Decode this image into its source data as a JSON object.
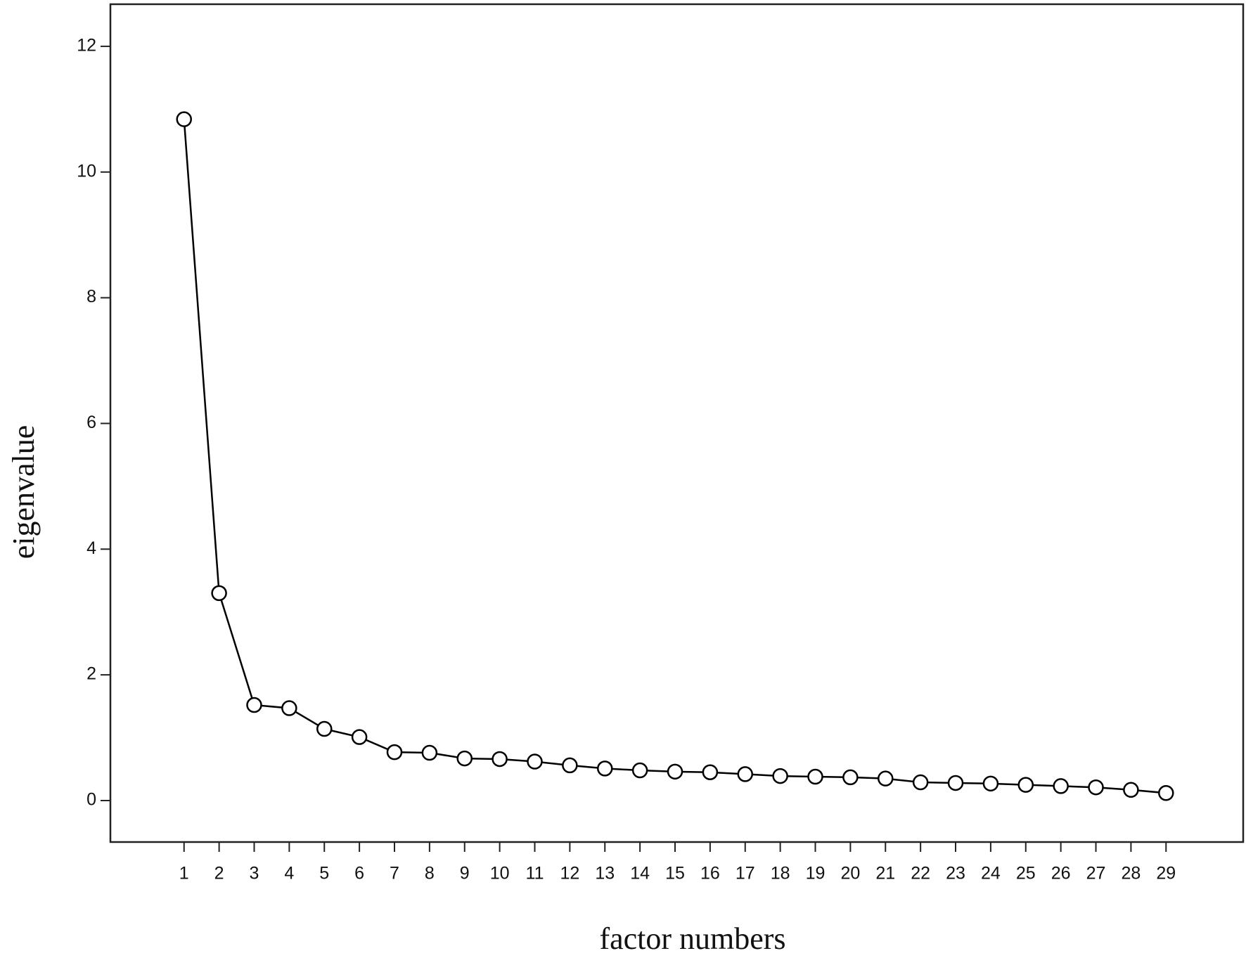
{
  "chart_data": {
    "type": "line",
    "xlabel": "factor numbers",
    "ylabel": "eigenvalue",
    "x": [
      1,
      2,
      3,
      4,
      5,
      6,
      7,
      8,
      9,
      10,
      11,
      12,
      13,
      14,
      15,
      16,
      17,
      18,
      19,
      20,
      21,
      22,
      23,
      24,
      25,
      26,
      27,
      28,
      29
    ],
    "values": [
      10.84,
      3.3,
      1.52,
      1.47,
      1.14,
      1.01,
      0.77,
      0.76,
      0.67,
      0.66,
      0.62,
      0.56,
      0.51,
      0.48,
      0.46,
      0.45,
      0.42,
      0.39,
      0.38,
      0.37,
      0.35,
      0.29,
      0.28,
      0.27,
      0.25,
      0.23,
      0.21,
      0.17,
      0.12
    ],
    "color": "#000000",
    "xlim": [
      -1.1,
      31.2
    ],
    "ylim": [
      -0.66,
      12.67
    ],
    "xticks": [
      1,
      2,
      3,
      4,
      5,
      6,
      7,
      8,
      9,
      10,
      11,
      12,
      13,
      14,
      15,
      16,
      17,
      18,
      19,
      20,
      21,
      22,
      23,
      24,
      25,
      26,
      27,
      28,
      29
    ],
    "yticks": [
      0,
      2,
      4,
      6,
      8,
      10,
      12
    ],
    "grid": false,
    "markers": "open-circle"
  }
}
